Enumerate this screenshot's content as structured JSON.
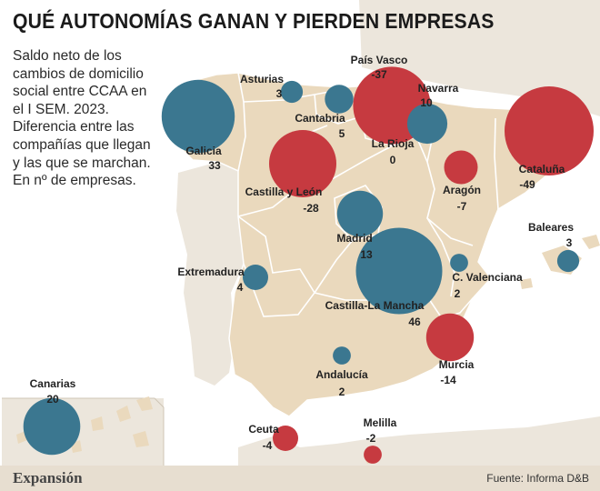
{
  "title": "QUÉ AUTONOMÍAS GANAN Y PIERDEN EMPRESAS",
  "subtitle": "Saldo neto de los cambios de domicilio social entre CCAA en el I SEM. 2023. Diferencia entre las compañías que llegan y las que se marchan. En nº de empresas.",
  "brand": "Expansión",
  "source": "Fuente: Informa D&B",
  "colors": {
    "gain": "#3b7790",
    "loss": "#c63a40",
    "land": "#ead9bd",
    "border": "#ffffff",
    "neighbor": "#ece6dc",
    "sea": "#ffffff"
  },
  "regions": [
    {
      "name": "País Vasco",
      "value": "-37"
    },
    {
      "name": "Asturias",
      "value": "3"
    },
    {
      "name": "Navarra",
      "value": "10"
    },
    {
      "name": "Galicia",
      "value": "33"
    },
    {
      "name": "Cantabria",
      "value": "5"
    },
    {
      "name": "La Rioja",
      "value": "0"
    },
    {
      "name": "Cataluña",
      "value": "-49"
    },
    {
      "name": "Castilla y León",
      "value": "-28"
    },
    {
      "name": "Aragón",
      "value": "-7"
    },
    {
      "name": "Madrid",
      "value": "13"
    },
    {
      "name": "Baleares",
      "value": "3"
    },
    {
      "name": "Extremadura",
      "value": "4"
    },
    {
      "name": "C. Valenciana",
      "value": "2"
    },
    {
      "name": "Castilla-La Mancha",
      "value": "46"
    },
    {
      "name": "Murcia",
      "value": "-14"
    },
    {
      "name": "Andalucía",
      "value": "2"
    },
    {
      "name": "Canarias",
      "value": "20"
    },
    {
      "name": "Ceuta",
      "value": "-4"
    },
    {
      "name": "Melilla",
      "value": "-2"
    }
  ]
}
